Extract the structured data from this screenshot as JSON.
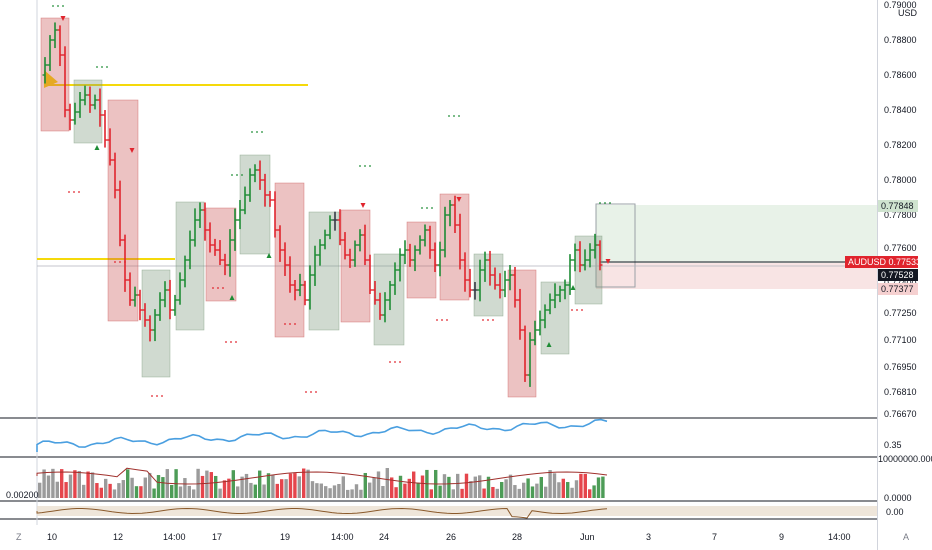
{
  "currency": "USD",
  "price_ticks": [
    "0.79000",
    "0.78800",
    "0.78600",
    "0.78400",
    "0.78200",
    "0.78000",
    "0.77800",
    "0.77600",
    "0.77400",
    "0.77250",
    "0.77100",
    "0.76950",
    "0.76810",
    "0.76670"
  ],
  "date_ticks": [
    "10",
    "12",
    "14:00",
    "17",
    "19",
    "14:00",
    "24",
    "26",
    "28",
    "Jun",
    "3",
    "7",
    "9",
    "14:00"
  ],
  "symbol_tag": {
    "label": "AUDUSD",
    "value": "0.77533",
    "color": "#e0242d"
  },
  "last_price_tag": {
    "value": "0.77528",
    "color": "#131722"
  },
  "upper_box_tag": {
    "value": "0.77848",
    "color": "#cfe3cf"
  },
  "lower_box_tag": {
    "value": "0.77377",
    "color": "#f5d0d0"
  },
  "rsi_pane": {
    "tick": "0.35"
  },
  "volume_pane": {
    "top_tick": "10000000.0000",
    "bottom_tick": "0.0000",
    "left_label": "0.00200"
  },
  "osc_pane": {
    "tick": "0.00"
  },
  "buttons": {
    "left": "Z",
    "right": "A"
  },
  "colors": {
    "up": "#1e8c35",
    "down": "#e0242d",
    "neutral": "#363a45",
    "rsi": "#4a9fe0",
    "level": "#f5d90a"
  }
}
